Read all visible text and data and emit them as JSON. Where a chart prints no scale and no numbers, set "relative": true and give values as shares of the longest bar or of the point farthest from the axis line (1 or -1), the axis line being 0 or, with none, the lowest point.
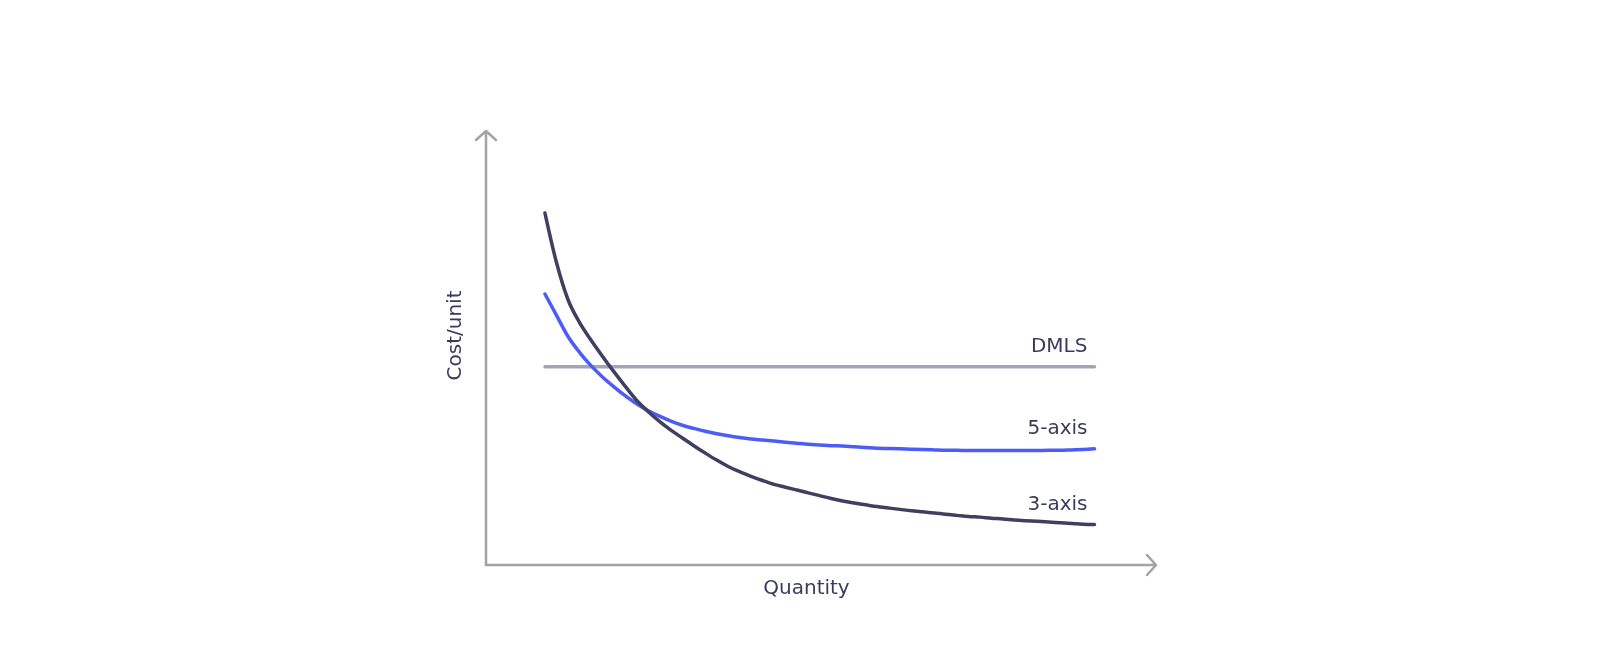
{
  "chart_data": {
    "type": "line",
    "relative": true,
    "xlabel": "Quantity",
    "ylabel": "Cost/unit",
    "categories": [
      null,
      null,
      null,
      null,
      null,
      null,
      null,
      null,
      null,
      null,
      null,
      null,
      null,
      null,
      null,
      null,
      null,
      null,
      null,
      null,
      null,
      null,
      null,
      null,
      null,
      null,
      null,
      null,
      null,
      null,
      null,
      null,
      null,
      null,
      null,
      null,
      null,
      null,
      null,
      null,
      null,
      null,
      null,
      null,
      null,
      null,
      null,
      null,
      null
    ],
    "series": [
      {
        "name": "DMLS",
        "color": "#a4a4b8",
        "values": [
          0.563,
          0.563,
          0.563,
          0.563,
          0.563,
          0.563,
          0.563,
          0.563,
          0.563,
          0.563,
          0.563,
          0.563,
          0.563,
          0.563,
          0.563,
          0.563,
          0.563,
          0.563,
          0.563,
          0.563,
          0.563,
          0.563,
          0.563,
          0.563,
          0.563,
          0.563,
          0.563,
          0.563,
          0.563,
          0.563,
          0.563,
          0.563,
          0.563,
          0.563,
          0.563,
          0.563,
          0.563,
          0.563,
          0.563,
          0.563,
          0.563,
          0.563,
          0.563,
          0.563,
          0.563,
          0.563,
          0.563,
          0.563,
          0.563
        ]
      },
      {
        "name": "5-axis",
        "color": "#4c5cf7",
        "values": [
          0.77,
          0.71,
          0.65,
          0.605,
          0.567,
          0.535,
          0.507,
          0.481,
          0.458,
          0.439,
          0.423,
          0.409,
          0.397,
          0.388,
          0.38,
          0.373,
          0.367,
          0.362,
          0.358,
          0.355,
          0.352,
          0.349,
          0.346,
          0.343,
          0.341,
          0.339,
          0.338,
          0.336,
          0.334,
          0.332,
          0.331,
          0.33,
          0.329,
          0.328,
          0.327,
          0.326,
          0.326,
          0.325,
          0.325,
          0.325,
          0.325,
          0.325,
          0.325,
          0.325,
          0.326,
          0.326,
          0.327,
          0.328,
          0.33
        ]
      },
      {
        "name": "3-axis",
        "color": "#3f405f",
        "values": [
          1,
          0.86,
          0.755,
          0.69,
          0.64,
          0.594,
          0.55,
          0.508,
          0.468,
          0.436,
          0.408,
          0.383,
          0.361,
          0.339,
          0.318,
          0.298,
          0.28,
          0.265,
          0.252,
          0.24,
          0.229,
          0.221,
          0.213,
          0.205,
          0.197,
          0.189,
          0.182,
          0.176,
          0.171,
          0.166,
          0.162,
          0.158,
          0.154,
          0.151,
          0.148,
          0.144,
          0.141,
          0.138,
          0.136,
          0.133,
          0.131,
          0.128,
          0.126,
          0.124,
          0.122,
          0.12,
          0.118,
          0.116,
          0.115
        ]
      }
    ]
  }
}
